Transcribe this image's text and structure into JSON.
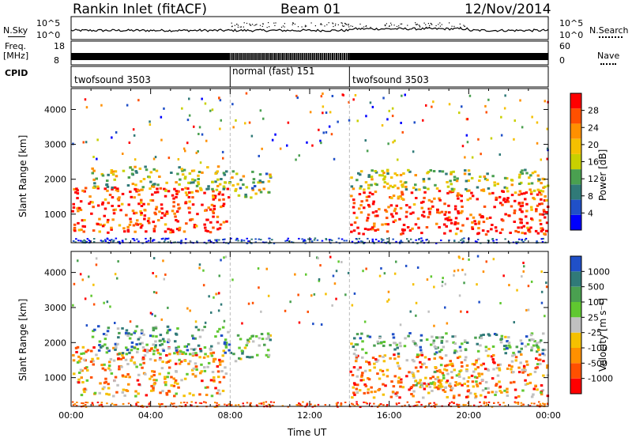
{
  "header": {
    "station": "Rankin Inlet (fitACF)",
    "beam": "Beam 01",
    "date": "12/Nov/2014"
  },
  "top_panels": {
    "nsky_label": "N.Sky",
    "nsearch_label": "N.Search",
    "nsky_ticks": [
      "10^5",
      "10^0"
    ],
    "nsearch_ticks": [
      "10^5",
      "10^0"
    ],
    "freq_label": "Freq.",
    "freq_unit": "[MHz]",
    "freq_ticks": [
      "18",
      "8"
    ],
    "nave_label": "Nave",
    "nave_ticks": [
      "60",
      "0"
    ],
    "cpid_label": "CPID",
    "cpid_segments": [
      {
        "name": "twofsound 3503",
        "start": 0,
        "end": 8
      },
      {
        "name": "normal (fast) 151",
        "start": 8,
        "end": 14
      },
      {
        "name": "twofsound 3503",
        "start": 14,
        "end": 24
      }
    ]
  },
  "chart_data": [
    {
      "type": "heatmap",
      "title": "Power",
      "xlabel": "Time UT",
      "ylabel": "Slant Range [km]",
      "x_ticks": [
        "00:00",
        "04:00",
        "08:00",
        "12:00",
        "16:00",
        "20:00",
        "00:00"
      ],
      "xlim_hours": [
        0,
        24
      ],
      "y_ticks": [
        1000,
        2000,
        3000,
        4000
      ],
      "ylim": [
        180,
        4600
      ],
      "colorbar": {
        "label": "Power [dB]",
        "ticks": [
          "28",
          "24",
          "20",
          "16",
          "12",
          "8",
          "4"
        ],
        "colors": [
          "#0000ff",
          "#2050c8",
          "#307a78",
          "#4aa050",
          "#c8d000",
          "#f5c000",
          "#ff9000",
          "#ff5000",
          "#ff0000"
        ]
      },
      "regions": [
        {
          "t0": 0.0,
          "t1": 7.9,
          "r0": 500,
          "r1": 1800,
          "level": 0.9
        },
        {
          "t0": 1.0,
          "t1": 8.0,
          "r0": 1700,
          "r1": 2400,
          "level": 0.5
        },
        {
          "t0": 8.0,
          "t1": 10.0,
          "r0": 1500,
          "r1": 2300,
          "level": 0.45
        },
        {
          "t0": 14.0,
          "t1": 24.0,
          "r0": 450,
          "r1": 1700,
          "level": 0.9
        },
        {
          "t0": 14.0,
          "t1": 24.0,
          "r0": 1700,
          "r1": 2300,
          "level": 0.5
        }
      ]
    },
    {
      "type": "heatmap",
      "title": "Velocity",
      "xlabel": "Time UT",
      "ylabel": "Slant Range [km]",
      "x_ticks": [
        "00:00",
        "04:00",
        "08:00",
        "12:00",
        "16:00",
        "20:00",
        "00:00"
      ],
      "xlim_hours": [
        0,
        24
      ],
      "y_ticks": [
        1000,
        2000,
        3000,
        4000
      ],
      "ylim": [
        180,
        4600
      ],
      "colorbar": {
        "label": "Velocity [m s⁻¹]",
        "ticks": [
          "1000",
          "500",
          "100",
          "25",
          "-25",
          "-100",
          "-500",
          "-1000"
        ],
        "colors": [
          "#ff0000",
          "#ff5000",
          "#ff9000",
          "#f5c000",
          "#c0c0c0",
          "#60c830",
          "#4aa050",
          "#307a78",
          "#2050c8"
        ]
      },
      "regions": [
        {
          "t0": 0.0,
          "t1": 7.9,
          "r0": 500,
          "r1": 1900,
          "level": 0.35
        },
        {
          "t0": 1.0,
          "t1": 8.0,
          "r0": 1700,
          "r1": 2500,
          "level": 0.75
        },
        {
          "t0": 8.0,
          "t1": 10.0,
          "r0": 1500,
          "r1": 2300,
          "level": 0.6
        },
        {
          "t0": 14.0,
          "t1": 24.0,
          "r0": 450,
          "r1": 1700,
          "level": 0.3
        },
        {
          "t0": 17.0,
          "t1": 21.0,
          "r0": 700,
          "r1": 1300,
          "level": 0.45
        },
        {
          "t0": 14.0,
          "t1": 24.0,
          "r0": 1700,
          "r1": 2300,
          "level": 0.7
        }
      ]
    }
  ]
}
